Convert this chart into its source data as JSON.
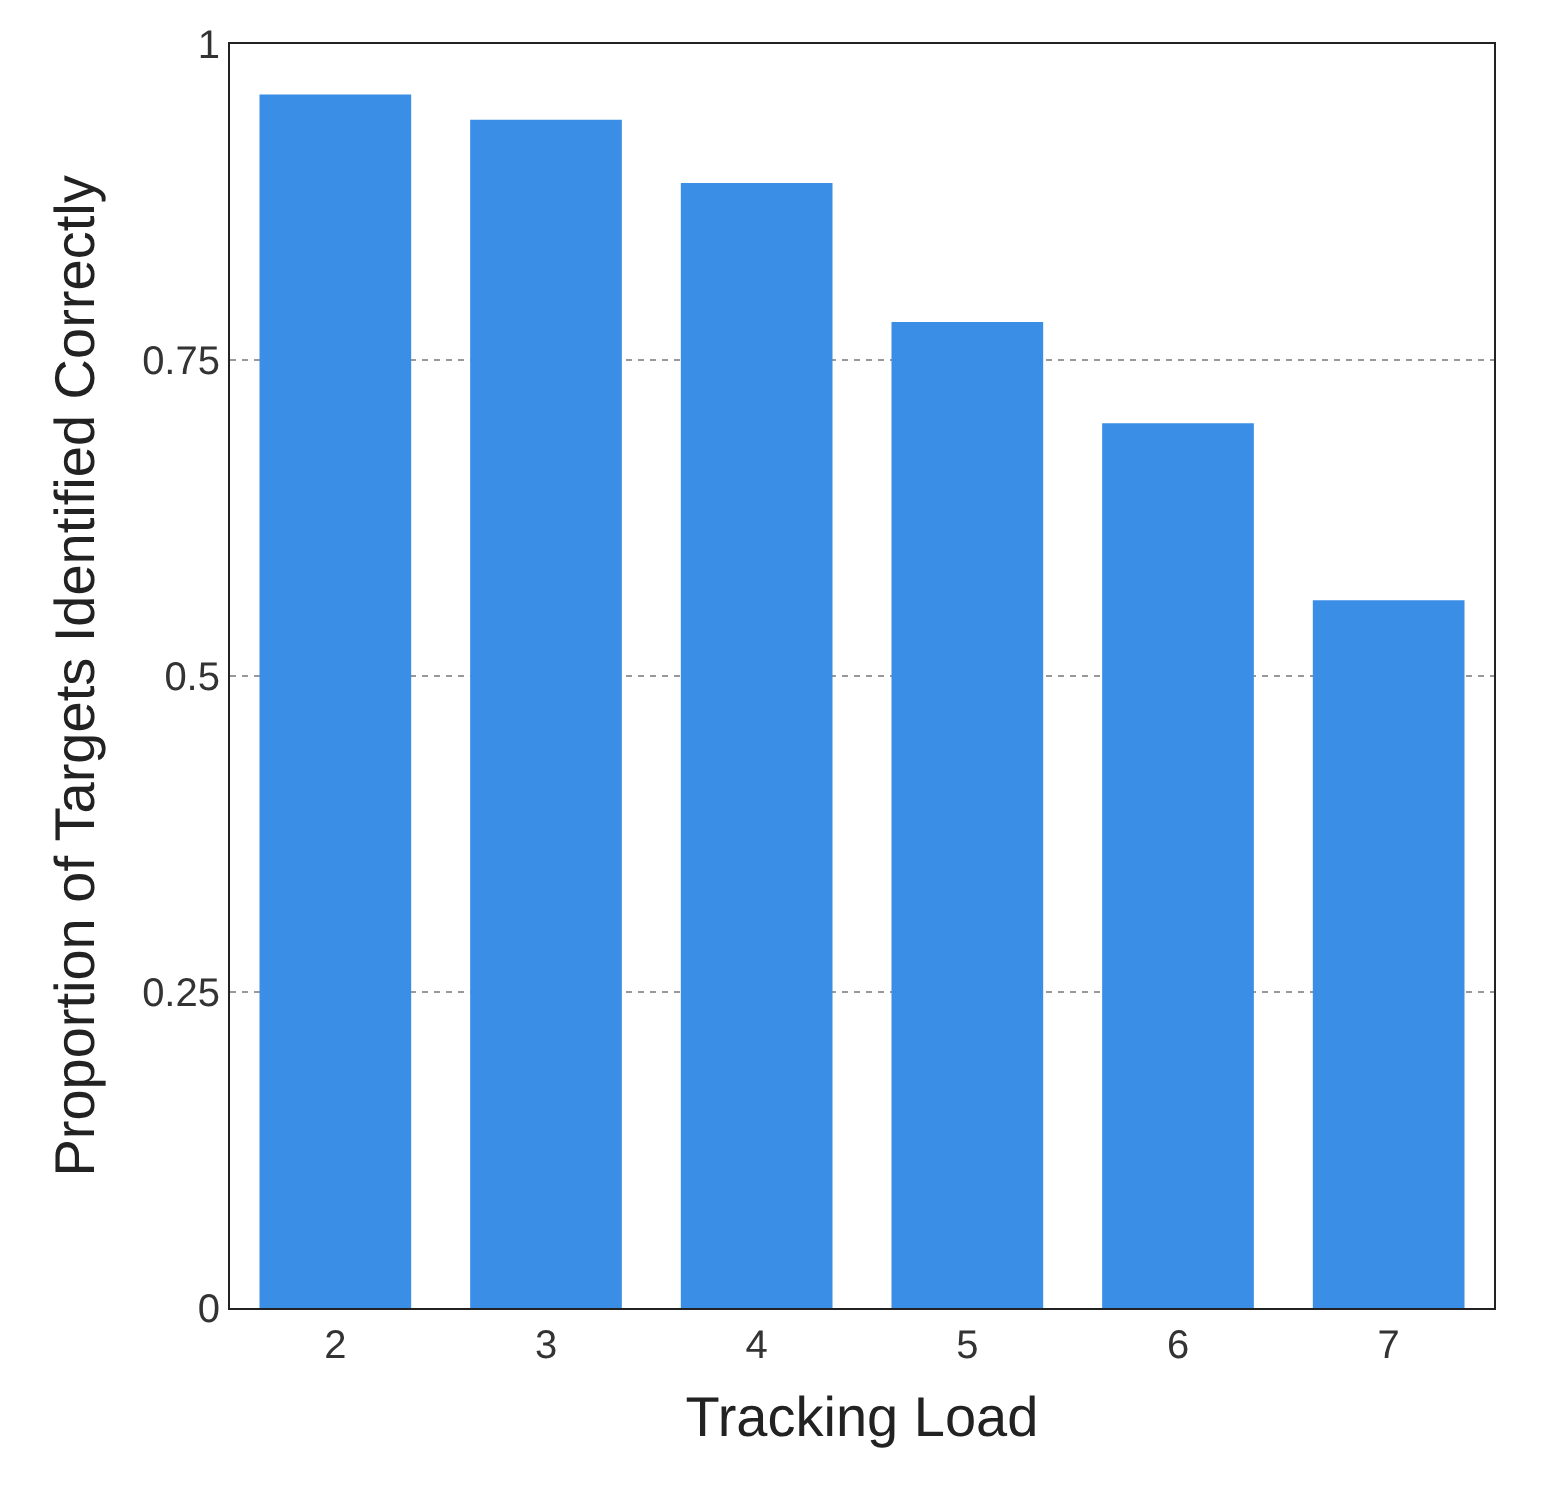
{
  "chart_data": {
    "type": "bar",
    "xlabel": "Tracking Load",
    "ylabel": "Proportion of Targets Identified Correctly",
    "categories": [
      "2",
      "3",
      "4",
      "5",
      "6",
      "7"
    ],
    "values": [
      0.96,
      0.94,
      0.89,
      0.78,
      0.7,
      0.56
    ],
    "color": "#3a8ee6",
    "ylim": [
      0,
      1
    ],
    "yticks": [
      0,
      0.25,
      0.5,
      0.75,
      1
    ],
    "grid": "y"
  }
}
